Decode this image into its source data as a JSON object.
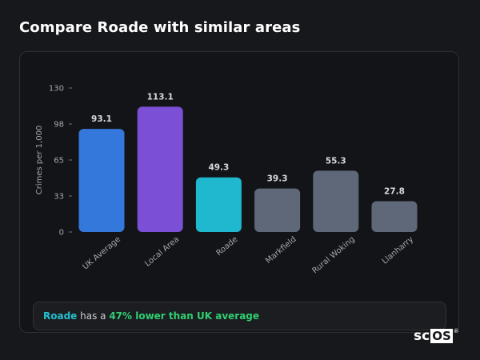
{
  "page": {
    "title": "Compare Roade with similar areas"
  },
  "chart_data": {
    "type": "bar",
    "ylabel": "Crimes per 1,000",
    "xlabel": "",
    "ylim": [
      0,
      130
    ],
    "yticks": [
      "0",
      "33",
      "65",
      "98",
      "130"
    ],
    "ytick_values": [
      0,
      32.5,
      65,
      97.5,
      130
    ],
    "grid": false,
    "categories": [
      "UK Average",
      "Local Area",
      "Roade",
      "Markfield",
      "Rural Woking",
      "Llanharry"
    ],
    "values": [
      93.1,
      113.1,
      49.3,
      39.3,
      55.3,
      27.8
    ],
    "value_labels": [
      "93.1",
      "113.1",
      "49.3",
      "39.3",
      "55.3",
      "27.8"
    ],
    "colors": [
      "#3478db",
      "#7b4fd6",
      "#1fb8cf",
      "#5f6878",
      "#5f6878",
      "#5f6878"
    ]
  },
  "summary": {
    "area": "Roade",
    "middle": " has a ",
    "diff": "47% lower than UK average"
  },
  "brand": {
    "sc": "sc",
    "os": "OS",
    "reg": "®"
  }
}
